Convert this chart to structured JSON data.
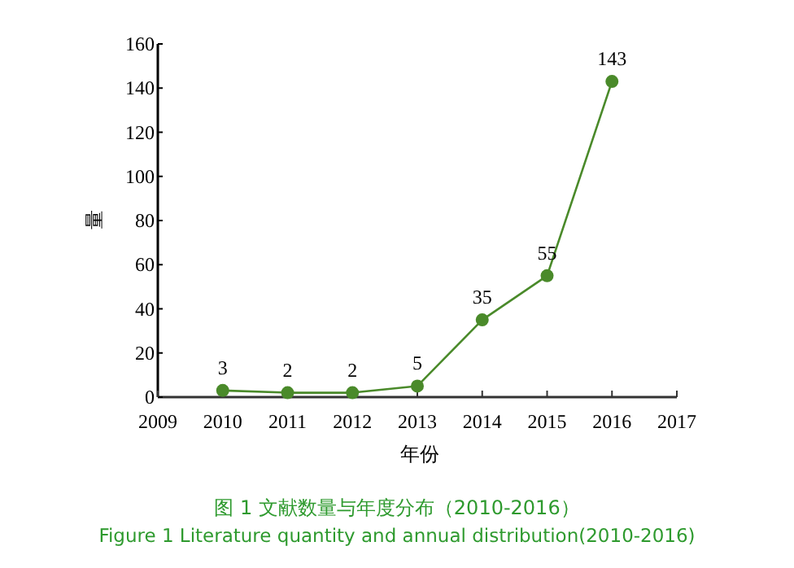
{
  "chart_data": {
    "type": "line",
    "title": "图 1 文献数量与年度分布（2010-2016）",
    "subtitle": "Figure 1 Literature quantity and annual distribution(2010-2016)",
    "xlabel": "年份",
    "ylabel": "量",
    "x": [
      2010,
      2011,
      2012,
      2013,
      2014,
      2015,
      2016
    ],
    "series": [
      {
        "color": "#4a8a2a",
        "values": [
          3,
          2,
          2,
          5,
          35,
          55,
          143
        ]
      }
    ],
    "xlim": [
      2009,
      2017
    ],
    "xticks": [
      2009,
      2010,
      2011,
      2012,
      2013,
      2014,
      2015,
      2016,
      2017
    ],
    "ylim": [
      0,
      160
    ],
    "yticks": [
      0,
      20,
      40,
      60,
      80,
      100,
      120,
      140,
      160
    ],
    "data_labels": true,
    "marker": "circle",
    "line_style": "solid"
  }
}
